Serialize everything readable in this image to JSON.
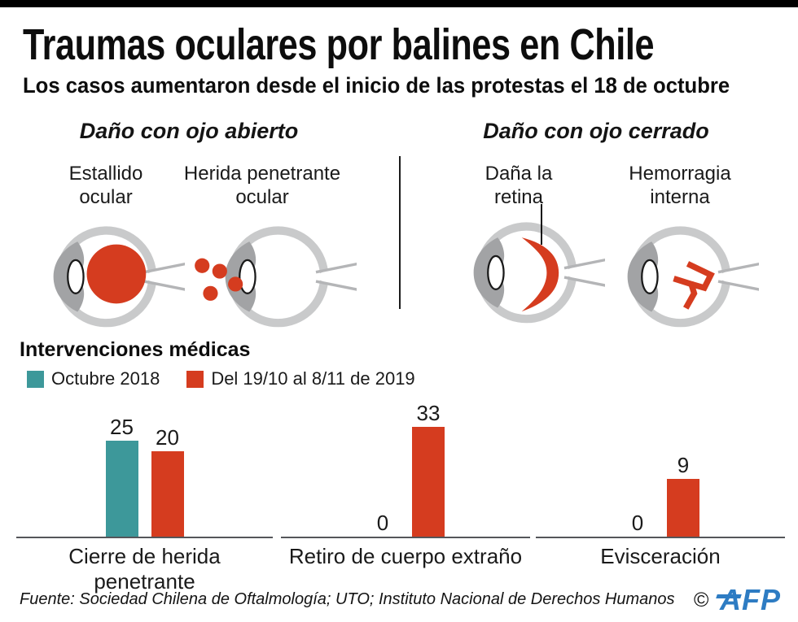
{
  "page": {
    "title": "Traumas oculares por balines en Chile",
    "subtitle": "Los casos aumentaron desde el inicio de las protestas el 18 de octubre"
  },
  "sections": {
    "open": {
      "title": "Daño con ojo abierto",
      "injuries": [
        {
          "line1": "Estallido",
          "line2": "ocular"
        },
        {
          "line1": "Herida penetrante",
          "line2": "ocular"
        }
      ]
    },
    "closed": {
      "title": "Daño con ojo cerrado",
      "injuries": [
        {
          "line1": "Daña la",
          "line2": "retina"
        },
        {
          "line1": "Hemorragia",
          "line2": "interna"
        }
      ]
    }
  },
  "chart_data": {
    "type": "bar",
    "title": "Intervenciones médicas",
    "categories": [
      "Cierre de herida penetrante",
      "Retiro de cuerpo extraño",
      "Evisceración"
    ],
    "series": [
      {
        "name": "Octubre 2018",
        "color": "#3d989a",
        "values": [
          25,
          0,
          0
        ]
      },
      {
        "name": "Del 19/10 al 8/11 de 2019",
        "color": "#d53c1f",
        "values": [
          20,
          33,
          9
        ]
      }
    ],
    "ylim": [
      0,
      35
    ],
    "grid": false,
    "legend_position": "top-left",
    "value_labels": true,
    "axes": "baseline only, no y-axis"
  },
  "colors": {
    "accent_red": "#d53c1f",
    "accent_teal": "#3d989a",
    "eye_gray_light": "#c9cacb",
    "eye_gray_mid": "#b4b5b7",
    "eye_gray_dark": "#a2a3a5",
    "afp_blue": "#2e7cc3"
  },
  "footer": {
    "source": "Fuente: Sociedad Chilena de Oftalmología; UTO; Instituto Nacional de Derechos Humanos",
    "copyright_symbol": "©",
    "logo_text": "AFP"
  }
}
